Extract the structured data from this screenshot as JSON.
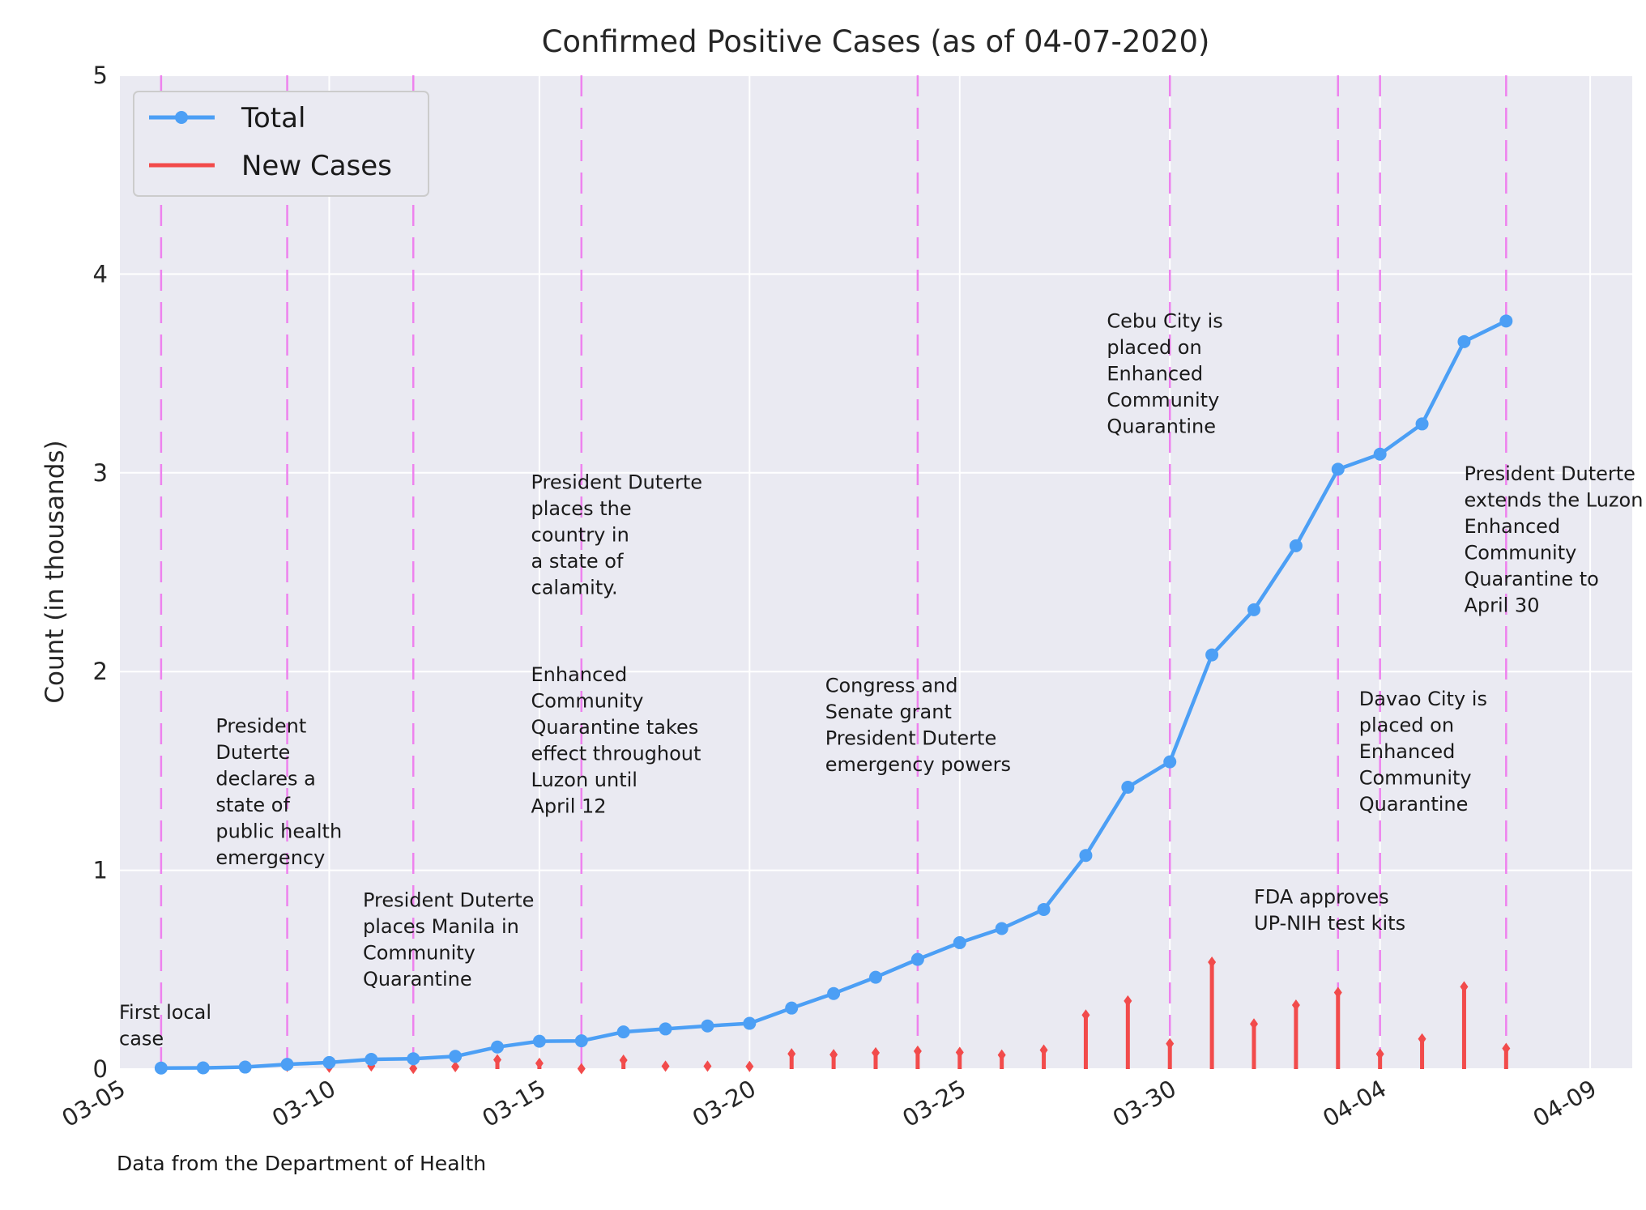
{
  "chart_data": {
    "type": "line",
    "title": "Confirmed Positive Cases (as of 04-07-2020)",
    "xlabel": "",
    "ylabel": "Count (in thousands)",
    "source_note": "Data from the Department of Health",
    "x_tick_labels": [
      "03-05",
      "03-10",
      "03-15",
      "03-20",
      "03-25",
      "03-30",
      "04-04",
      "04-09"
    ],
    "y_tick_labels": [
      "0",
      "1",
      "2",
      "3",
      "4",
      "5"
    ],
    "x_range": [
      "2020-03-05",
      "2020-04-10"
    ],
    "ylim": [
      0,
      5
    ],
    "grid": true,
    "legend_position": "upper-left",
    "colors": {
      "background": "#EAEAF2",
      "grid": "#FFFFFF",
      "total": "#4C9FF5",
      "new_cases": "#F24B4B",
      "event_lines": "#EE82EE"
    },
    "series": [
      {
        "name": "Total",
        "style": "line-with-markers",
        "x": [
          "2020-03-06",
          "2020-03-07",
          "2020-03-08",
          "2020-03-09",
          "2020-03-10",
          "2020-03-11",
          "2020-03-12",
          "2020-03-13",
          "2020-03-14",
          "2020-03-15",
          "2020-03-16",
          "2020-03-17",
          "2020-03-18",
          "2020-03-19",
          "2020-03-20",
          "2020-03-21",
          "2020-03-22",
          "2020-03-23",
          "2020-03-24",
          "2020-03-25",
          "2020-03-26",
          "2020-03-27",
          "2020-03-28",
          "2020-03-29",
          "2020-03-30",
          "2020-03-31",
          "2020-04-01",
          "2020-04-02",
          "2020-04-03",
          "2020-04-04",
          "2020-04-05",
          "2020-04-06",
          "2020-04-07"
        ],
        "y": [
          0.005,
          0.006,
          0.01,
          0.024,
          0.033,
          0.049,
          0.052,
          0.064,
          0.111,
          0.14,
          0.142,
          0.187,
          0.202,
          0.217,
          0.23,
          0.307,
          0.38,
          0.462,
          0.552,
          0.636,
          0.707,
          0.803,
          1.075,
          1.418,
          1.546,
          2.084,
          2.311,
          2.633,
          3.018,
          3.094,
          3.246,
          3.66,
          3.764
        ]
      },
      {
        "name": "New Cases",
        "style": "stem",
        "x": [
          "2020-03-09",
          "2020-03-10",
          "2020-03-11",
          "2020-03-12",
          "2020-03-13",
          "2020-03-14",
          "2020-03-15",
          "2020-03-16",
          "2020-03-17",
          "2020-03-18",
          "2020-03-19",
          "2020-03-20",
          "2020-03-21",
          "2020-03-22",
          "2020-03-23",
          "2020-03-24",
          "2020-03-25",
          "2020-03-26",
          "2020-03-27",
          "2020-03-28",
          "2020-03-29",
          "2020-03-30",
          "2020-03-31",
          "2020-04-01",
          "2020-04-02",
          "2020-04-03",
          "2020-04-04",
          "2020-04-05",
          "2020-04-06",
          "2020-04-07"
        ],
        "y": [
          0.014,
          0.009,
          0.016,
          0.003,
          0.012,
          0.047,
          0.029,
          0.002,
          0.045,
          0.015,
          0.015,
          0.013,
          0.077,
          0.073,
          0.082,
          0.09,
          0.084,
          0.071,
          0.096,
          0.272,
          0.343,
          0.128,
          0.538,
          0.227,
          0.322,
          0.385,
          0.076,
          0.152,
          0.414,
          0.104
        ]
      }
    ],
    "event_dates": [
      "2020-03-06",
      "2020-03-09",
      "2020-03-12",
      "2020-03-16",
      "2020-03-24",
      "2020-03-30",
      "2020-04-03",
      "2020-04-04",
      "2020-04-07"
    ],
    "annotations": [
      {
        "date": "2020-03-05",
        "y": 0.12,
        "lines": [
          "First local",
          "case"
        ]
      },
      {
        "date": "2020-03-07.3",
        "y": 1.03,
        "lines": [
          "President",
          "Duterte",
          "declares a",
          "state of",
          "public health",
          "emergency"
        ]
      },
      {
        "date": "2020-03-10.8",
        "y": 0.42,
        "lines": [
          "President Duterte",
          "places Manila in",
          "Community",
          "Quarantine"
        ]
      },
      {
        "date": "2020-03-14.8",
        "y": 2.39,
        "lines": [
          "President Duterte",
          "places the",
          "country in",
          "a state of",
          "calamity."
        ]
      },
      {
        "date": "2020-03-14.8",
        "y": 1.29,
        "lines": [
          "Enhanced",
          "Community",
          "Quarantine takes",
          "effect throughout",
          "Luzon until",
          "April 12"
        ]
      },
      {
        "date": "2020-03-21.8",
        "y": 1.5,
        "lines": [
          "Congress and",
          "Senate grant",
          "President Duterte",
          "emergency powers"
        ]
      },
      {
        "date": "2020-03-28.5",
        "y": 3.2,
        "lines": [
          "Cebu City is",
          "placed on",
          "Enhanced",
          "Community",
          "Quarantine"
        ]
      },
      {
        "date": "2020-04-01",
        "y": 0.7,
        "lines": [
          "FDA approves",
          "UP-NIH test kits"
        ]
      },
      {
        "date": "2020-04-03.5",
        "y": 1.3,
        "lines": [
          "Davao City is",
          "placed on",
          "Enhanced",
          "Community",
          "Quarantine"
        ]
      },
      {
        "date": "2020-04-06",
        "y": 2.3,
        "lines": [
          "President Duterte",
          "extends the Luzon",
          "Enhanced",
          "Community",
          "Quarantine to",
          "April 30"
        ]
      }
    ]
  }
}
